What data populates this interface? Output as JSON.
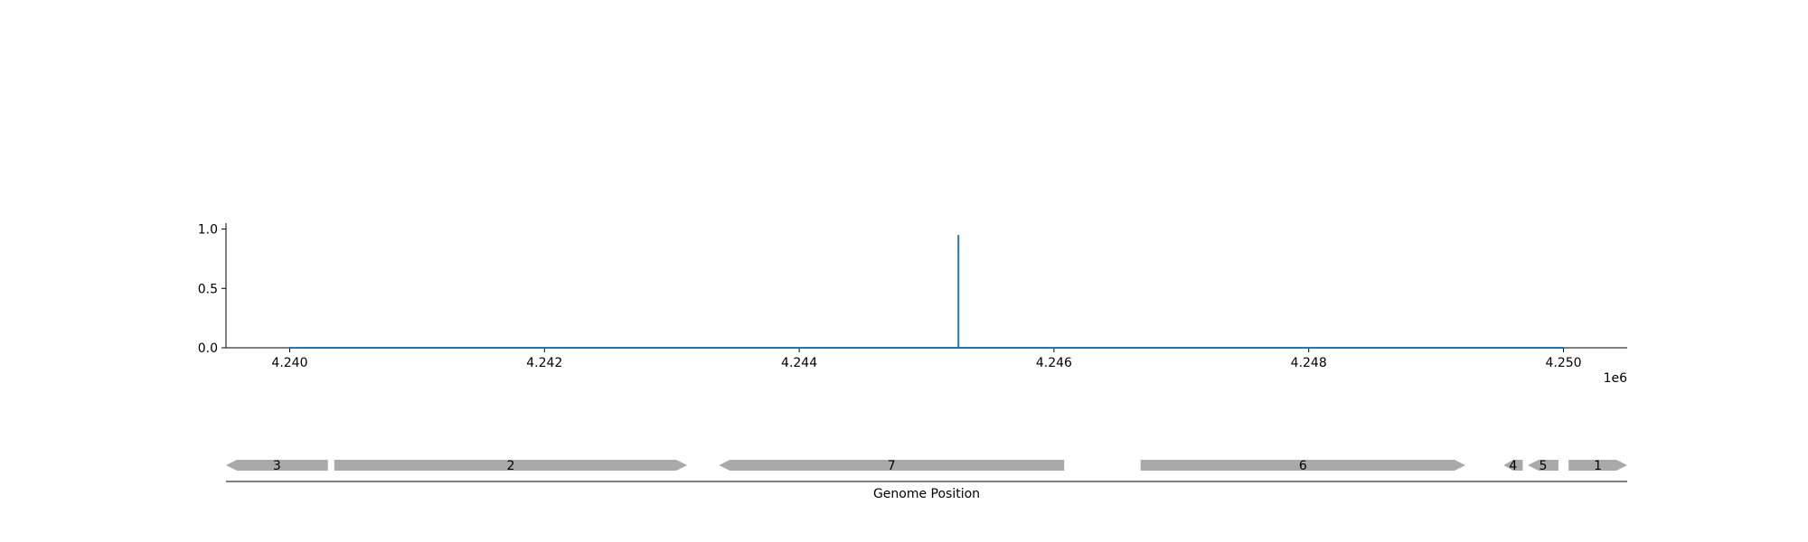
{
  "chart_data": [
    {
      "type": "line",
      "title": "",
      "xlabel": "",
      "ylabel": "",
      "x_offset_label": "1e6",
      "xlim": [
        4239500,
        4250500
      ],
      "ylim": [
        0,
        1.05
      ],
      "xticks": [
        4240000,
        4242000,
        4244000,
        4246000,
        4248000,
        4250000
      ],
      "xtick_labels": [
        "4.240",
        "4.242",
        "4.244",
        "4.246",
        "4.248",
        "4.250"
      ],
      "yticks": [
        0.0,
        0.5,
        1.0
      ],
      "ytick_labels": [
        "0.0",
        "0.5",
        "1.0"
      ],
      "grid": false,
      "series": [
        {
          "color": "#1f77b4",
          "x": [
            4240000,
            4245250,
            4245250,
            4245250,
            4250000
          ],
          "y": [
            0.0,
            0.0,
            0.95,
            0.0,
            0.0
          ]
        }
      ]
    },
    {
      "type": "gene_track",
      "xlabel": "Genome Position",
      "xlim": [
        4239500,
        4250500
      ],
      "feature_color": "#a9a9a9",
      "features": [
        {
          "label": "3",
          "start": 4239500,
          "end": 4240300,
          "strand": "-"
        },
        {
          "label": "2",
          "start": 4240350,
          "end": 4243120,
          "strand": "+"
        },
        {
          "label": "7",
          "start": 4243370,
          "end": 4246080,
          "strand": "-"
        },
        {
          "label": "6",
          "start": 4246680,
          "end": 4249230,
          "strand": "+"
        },
        {
          "label": "4",
          "start": 4249530,
          "end": 4249680,
          "strand": "-"
        },
        {
          "label": "5",
          "start": 4249720,
          "end": 4249960,
          "strand": "-"
        },
        {
          "label": "1",
          "start": 4250040,
          "end": 4250500,
          "strand": "+"
        }
      ]
    }
  ]
}
